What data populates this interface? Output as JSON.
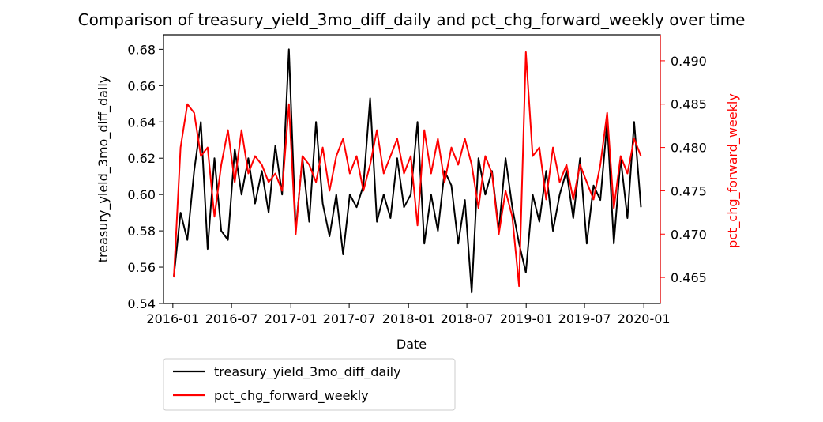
{
  "chart_data": {
    "type": "line",
    "title": "Comparison of treasury_yield_3mo_diff_daily and pct_chg_forward_weekly over time",
    "xlabel": "Date",
    "ylabel_left": "treasury_yield_3mo_diff_daily",
    "ylabel_right": "pct_chg_forward_weekly",
    "x_ticks": [
      "2016-01",
      "2016-07",
      "2017-01",
      "2017-07",
      "2018-01",
      "2018-07",
      "2019-01",
      "2019-07",
      "2020-01"
    ],
    "ylim_left": [
      0.54,
      0.688
    ],
    "yticks_left": [
      0.54,
      0.56,
      0.58,
      0.6,
      0.62,
      0.64,
      0.66,
      0.68
    ],
    "ylim_right": [
      0.462,
      0.493
    ],
    "yticks_right": [
      0.465,
      0.47,
      0.475,
      0.48,
      0.485,
      0.49
    ],
    "legend_position": "below-left",
    "grid": false,
    "colors": {
      "left_series": "#000000",
      "right_series": "#ff0000",
      "right_axis": "#ff0000"
    },
    "series": [
      {
        "name": "treasury_yield_3mo_diff_daily",
        "axis": "left",
        "color": "#000000",
        "x": [
          "2016-01-04",
          "2016-01-25",
          "2016-02-15",
          "2016-03-07",
          "2016-03-28",
          "2016-04-18",
          "2016-05-09",
          "2016-05-30",
          "2016-06-20",
          "2016-07-11",
          "2016-08-01",
          "2016-08-22",
          "2016-09-12",
          "2016-10-03",
          "2016-10-24",
          "2016-11-14",
          "2016-12-05",
          "2016-12-26",
          "2017-01-16",
          "2017-02-06",
          "2017-02-27",
          "2017-03-20",
          "2017-04-10",
          "2017-05-01",
          "2017-05-22",
          "2017-06-12",
          "2017-07-03",
          "2017-07-24",
          "2017-08-14",
          "2017-09-04",
          "2017-09-25",
          "2017-10-16",
          "2017-11-06",
          "2017-11-27",
          "2017-12-18",
          "2018-01-08",
          "2018-01-29",
          "2018-02-19",
          "2018-03-12",
          "2018-04-02",
          "2018-04-23",
          "2018-05-14",
          "2018-06-04",
          "2018-06-25",
          "2018-07-16",
          "2018-08-06",
          "2018-08-27",
          "2018-09-17",
          "2018-10-08",
          "2018-10-29",
          "2018-11-19",
          "2018-12-10",
          "2018-12-31",
          "2019-01-21",
          "2019-02-11",
          "2019-03-04",
          "2019-03-25",
          "2019-04-15",
          "2019-05-06",
          "2019-05-27",
          "2019-06-17",
          "2019-07-08",
          "2019-07-29",
          "2019-08-19",
          "2019-09-09",
          "2019-09-30",
          "2019-10-21",
          "2019-11-11",
          "2019-12-02",
          "2019-12-23"
        ],
        "y": [
          0.555,
          0.59,
          0.575,
          0.613,
          0.64,
          0.57,
          0.62,
          0.58,
          0.575,
          0.625,
          0.6,
          0.62,
          0.595,
          0.613,
          0.59,
          0.627,
          0.6,
          0.68,
          0.58,
          0.62,
          0.585,
          0.64,
          0.595,
          0.577,
          0.6,
          0.567,
          0.6,
          0.593,
          0.605,
          0.653,
          0.585,
          0.6,
          0.587,
          0.62,
          0.593,
          0.6,
          0.64,
          0.573,
          0.6,
          0.58,
          0.613,
          0.605,
          0.573,
          0.597,
          0.546,
          0.62,
          0.6,
          0.613,
          0.58,
          0.62,
          0.593,
          0.573,
          0.557,
          0.6,
          0.585,
          0.613,
          0.58,
          0.6,
          0.613,
          0.587,
          0.62,
          0.573,
          0.605,
          0.597,
          0.64,
          0.573,
          0.62,
          0.587,
          0.64,
          0.593
        ]
      },
      {
        "name": "pct_chg_forward_weekly",
        "axis": "right",
        "color": "#ff0000",
        "x": [
          "2016-01-04",
          "2016-01-25",
          "2016-02-15",
          "2016-03-07",
          "2016-03-28",
          "2016-04-18",
          "2016-05-09",
          "2016-05-30",
          "2016-06-20",
          "2016-07-11",
          "2016-08-01",
          "2016-08-22",
          "2016-09-12",
          "2016-10-03",
          "2016-10-24",
          "2016-11-14",
          "2016-12-05",
          "2016-12-26",
          "2017-01-16",
          "2017-02-06",
          "2017-02-27",
          "2017-03-20",
          "2017-04-10",
          "2017-05-01",
          "2017-05-22",
          "2017-06-12",
          "2017-07-03",
          "2017-07-24",
          "2017-08-14",
          "2017-09-04",
          "2017-09-25",
          "2017-10-16",
          "2017-11-06",
          "2017-11-27",
          "2017-12-18",
          "2018-01-08",
          "2018-01-29",
          "2018-02-19",
          "2018-03-12",
          "2018-04-02",
          "2018-04-23",
          "2018-05-14",
          "2018-06-04",
          "2018-06-25",
          "2018-07-16",
          "2018-08-06",
          "2018-08-27",
          "2018-09-17",
          "2018-10-08",
          "2018-10-29",
          "2018-11-19",
          "2018-12-10",
          "2018-12-31",
          "2019-01-21",
          "2019-02-11",
          "2019-03-04",
          "2019-03-25",
          "2019-04-15",
          "2019-05-06",
          "2019-05-27",
          "2019-06-17",
          "2019-07-08",
          "2019-07-29",
          "2019-08-19",
          "2019-09-09",
          "2019-09-30",
          "2019-10-21",
          "2019-11-11",
          "2019-12-02",
          "2019-12-23"
        ],
        "y": [
          0.465,
          0.48,
          0.485,
          0.484,
          0.479,
          0.48,
          0.472,
          0.478,
          0.482,
          0.476,
          0.482,
          0.477,
          0.479,
          0.478,
          0.476,
          0.477,
          0.475,
          0.485,
          0.47,
          0.479,
          0.478,
          0.476,
          0.48,
          0.475,
          0.479,
          0.481,
          0.477,
          0.479,
          0.475,
          0.478,
          0.482,
          0.477,
          0.479,
          0.481,
          0.477,
          0.479,
          0.471,
          0.482,
          0.477,
          0.481,
          0.476,
          0.48,
          0.478,
          0.481,
          0.478,
          0.473,
          0.479,
          0.477,
          0.47,
          0.475,
          0.472,
          0.464,
          0.491,
          0.479,
          0.48,
          0.474,
          0.48,
          0.476,
          0.478,
          0.474,
          0.478,
          0.476,
          0.474,
          0.478,
          0.484,
          0.473,
          0.479,
          0.477,
          0.481,
          0.479
        ]
      }
    ]
  }
}
